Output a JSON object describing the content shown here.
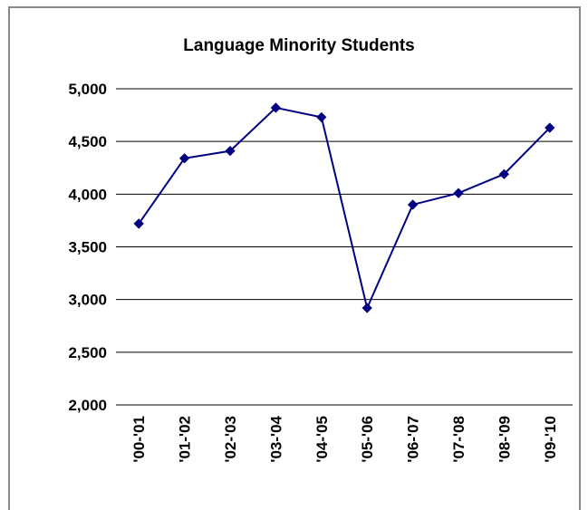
{
  "chart_data": {
    "type": "line",
    "title": "Language Minority Students",
    "categories": [
      "'00-'01",
      "'01-'02",
      "'02-'03",
      "'03-'04",
      "'04-'05",
      "'05-'06",
      "'06-'07",
      "'07-'08",
      "'08-'09",
      "'09-'10"
    ],
    "series": [
      {
        "name": "Language Minority Students",
        "color": "#000080",
        "values": [
          3720,
          4340,
          4410,
          4820,
          4730,
          2920,
          3900,
          4010,
          4190,
          4630
        ]
      }
    ],
    "ylim": [
      2000,
      5000
    ],
    "yticks": [
      {
        "value": 2000,
        "label": "2,000"
      },
      {
        "value": 2500,
        "label": "2,500"
      },
      {
        "value": 3000,
        "label": "3,000"
      },
      {
        "value": 3500,
        "label": "3,500"
      },
      {
        "value": 4000,
        "label": "4,000"
      },
      {
        "value": 4500,
        "label": "4,500"
      },
      {
        "value": 5000,
        "label": "5,000"
      }
    ],
    "grid": true
  }
}
